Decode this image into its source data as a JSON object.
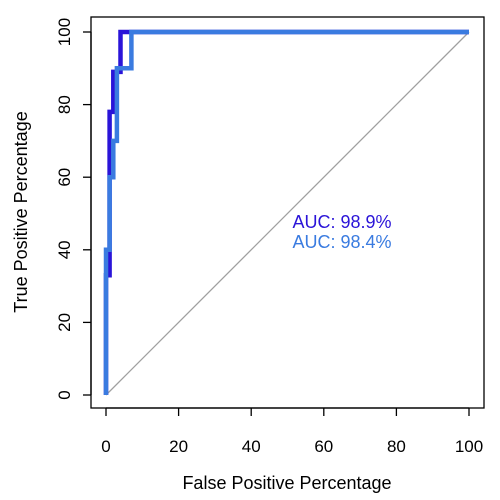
{
  "chart_data": {
    "type": "line",
    "xlabel": "False Positive Percentage",
    "ylabel": "True Positive Percentage",
    "xlim": [
      0,
      100
    ],
    "ylim": [
      0,
      100
    ],
    "x_ticks": [
      0,
      20,
      40,
      60,
      80,
      100
    ],
    "y_ticks": [
      0,
      20,
      40,
      60,
      80,
      100
    ],
    "x_tick_labels": [
      "0",
      "20",
      "40",
      "60",
      "80",
      "100"
    ],
    "y_tick_labels": [
      "0",
      "20",
      "40",
      "60",
      "80",
      "100"
    ],
    "grid": false,
    "reference_line": {
      "x": [
        0,
        100
      ],
      "y": [
        0,
        100
      ],
      "color": "#a0a0a0"
    },
    "series": [
      {
        "color": "#2a14d8",
        "points": [
          [
            0,
            0
          ],
          [
            0,
            33
          ],
          [
            1,
            33
          ],
          [
            1,
            78
          ],
          [
            2,
            78
          ],
          [
            2,
            89
          ],
          [
            4,
            89
          ],
          [
            4,
            100
          ],
          [
            100,
            100
          ]
        ]
      },
      {
        "color": "#3a7be0",
        "points": [
          [
            0,
            0
          ],
          [
            0,
            30
          ],
          [
            0,
            40
          ],
          [
            1,
            40
          ],
          [
            1,
            60
          ],
          [
            2,
            60
          ],
          [
            2,
            70
          ],
          [
            3,
            70
          ],
          [
            3,
            90
          ],
          [
            7,
            90
          ],
          [
            7,
            100
          ],
          [
            100,
            100
          ]
        ]
      }
    ],
    "annotations": [
      {
        "text": "AUC: 98.9%",
        "color": "#2a14d8"
      },
      {
        "text": "AUC: 98.4%",
        "color": "#3a7be0"
      }
    ]
  }
}
